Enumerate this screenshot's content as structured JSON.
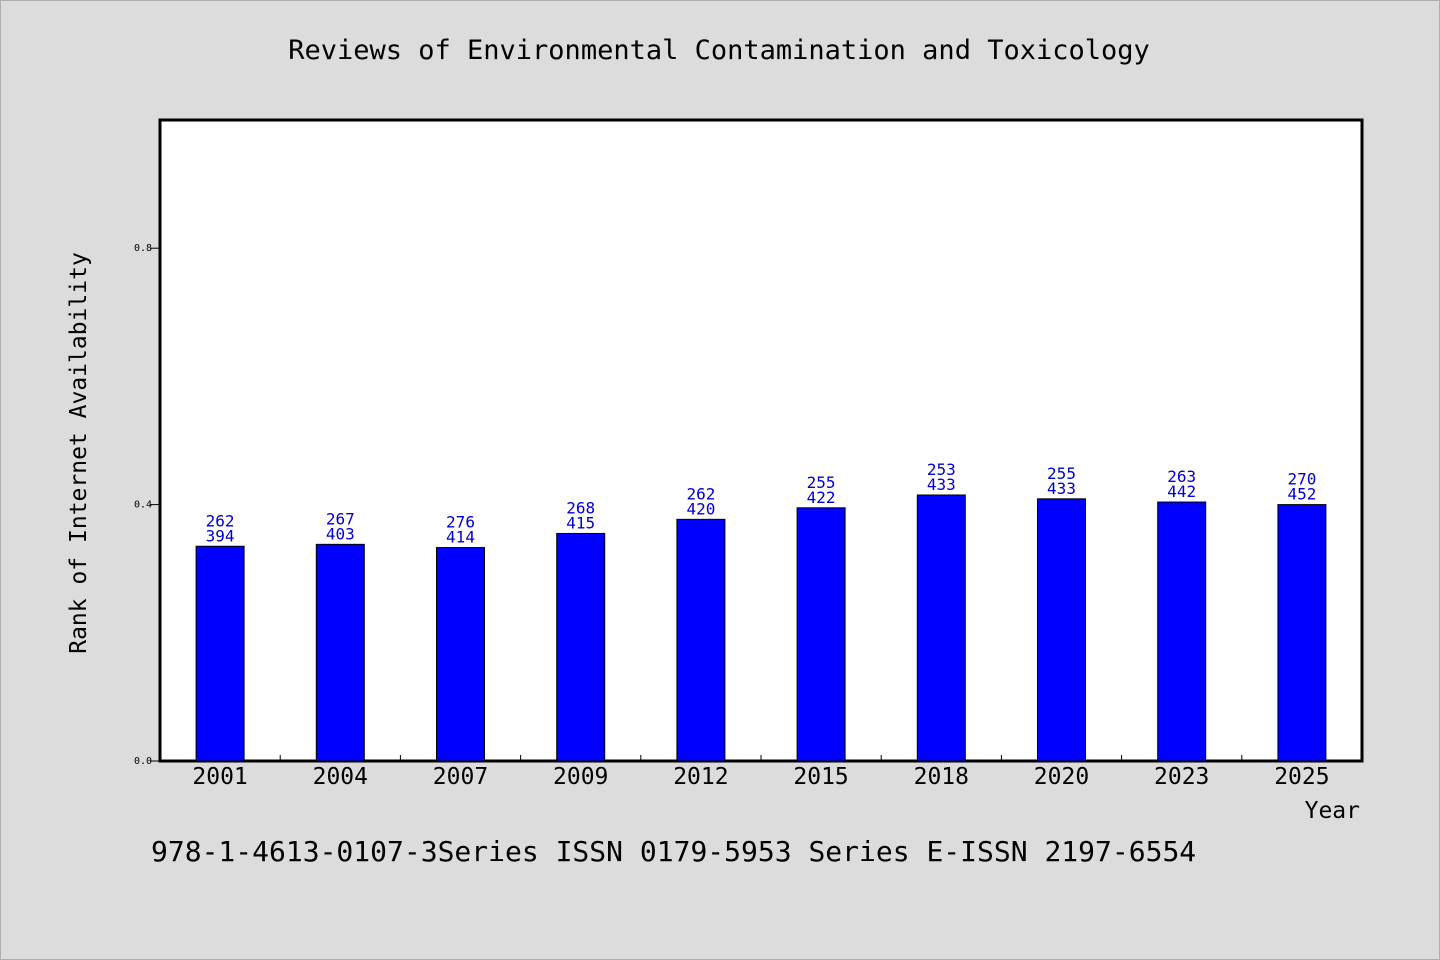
{
  "chart_data": {
    "type": "bar",
    "title": "Reviews of Environmental Contamination and Toxicology",
    "xlabel": "Year",
    "ylabel": "Rank of Internet Availability",
    "ylim": [
      0,
      1.0
    ],
    "yticks": [
      "0.0",
      "0.4",
      "0.8"
    ],
    "categories": [
      "2001",
      "2004",
      "2007",
      "2009",
      "2012",
      "2015",
      "2018",
      "2020",
      "2023",
      "2025"
    ],
    "values": [
      0.335,
      0.338,
      0.333,
      0.355,
      0.377,
      0.395,
      0.415,
      0.409,
      0.404,
      0.4
    ],
    "label_top": [
      "262",
      "267",
      "276",
      "268",
      "262",
      "255",
      "253",
      "255",
      "263",
      "270"
    ],
    "label_bottom": [
      "394",
      "403",
      "414",
      "415",
      "420",
      "422",
      "433",
      "433",
      "442",
      "452"
    ],
    "bar_color": "#0000ff",
    "label_color": "#0000cc",
    "grid": false,
    "legend": "none"
  },
  "footer": "978-1-4613-0107-3Series ISSN 0179-5953 Series E-ISSN 2197-6554"
}
